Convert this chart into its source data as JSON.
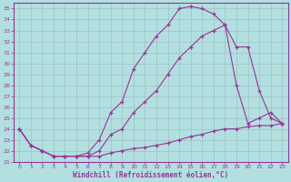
{
  "xlabel": "Windchill (Refroidissement éolien,°C)",
  "bg_color": "#b2e0e0",
  "grid_color": "#c8d8d8",
  "line_color": "#993399",
  "xlim": [
    -0.5,
    23.5
  ],
  "ylim": [
    21,
    35.5
  ],
  "yticks": [
    21,
    22,
    23,
    24,
    25,
    26,
    27,
    28,
    29,
    30,
    31,
    32,
    33,
    34,
    35
  ],
  "xticks": [
    0,
    1,
    2,
    3,
    4,
    5,
    6,
    7,
    8,
    9,
    10,
    11,
    12,
    13,
    14,
    15,
    16,
    17,
    18,
    19,
    20,
    21,
    22,
    23
  ],
  "line1_x": [
    0,
    1,
    2,
    3,
    4,
    5,
    6,
    7,
    8,
    9,
    10,
    11,
    12,
    13,
    14,
    15,
    16,
    17,
    18,
    19,
    20,
    21,
    22,
    23
  ],
  "line1_y": [
    24.0,
    22.5,
    22.0,
    21.5,
    21.5,
    21.5,
    21.5,
    21.5,
    21.8,
    22.0,
    22.2,
    22.3,
    22.5,
    22.7,
    23.0,
    23.3,
    23.5,
    23.8,
    24.0,
    24.0,
    24.2,
    24.3,
    24.3,
    24.5
  ],
  "line2_x": [
    0,
    1,
    2,
    3,
    4,
    5,
    6,
    7,
    8,
    9,
    10,
    11,
    12,
    13,
    14,
    15,
    16,
    17,
    18,
    19,
    20,
    21,
    22,
    23
  ],
  "line2_y": [
    24.0,
    22.5,
    22.0,
    21.5,
    21.5,
    21.5,
    21.5,
    22.0,
    23.5,
    24.0,
    25.5,
    26.5,
    27.5,
    29.0,
    30.5,
    31.5,
    32.5,
    33.0,
    33.5,
    31.5,
    31.5,
    27.5,
    25.0,
    24.5
  ],
  "line3_x": [
    0,
    1,
    2,
    3,
    4,
    5,
    6,
    7,
    8,
    9,
    10,
    11,
    12,
    13,
    14,
    15,
    16,
    17,
    18,
    19,
    20,
    21,
    22,
    23
  ],
  "line3_y": [
    24.0,
    22.5,
    22.0,
    21.5,
    21.5,
    21.5,
    21.8,
    23.0,
    25.5,
    26.5,
    29.5,
    31.0,
    32.5,
    33.5,
    35.0,
    35.2,
    35.0,
    34.5,
    33.5,
    28.0,
    24.5,
    25.0,
    25.5,
    24.5
  ]
}
